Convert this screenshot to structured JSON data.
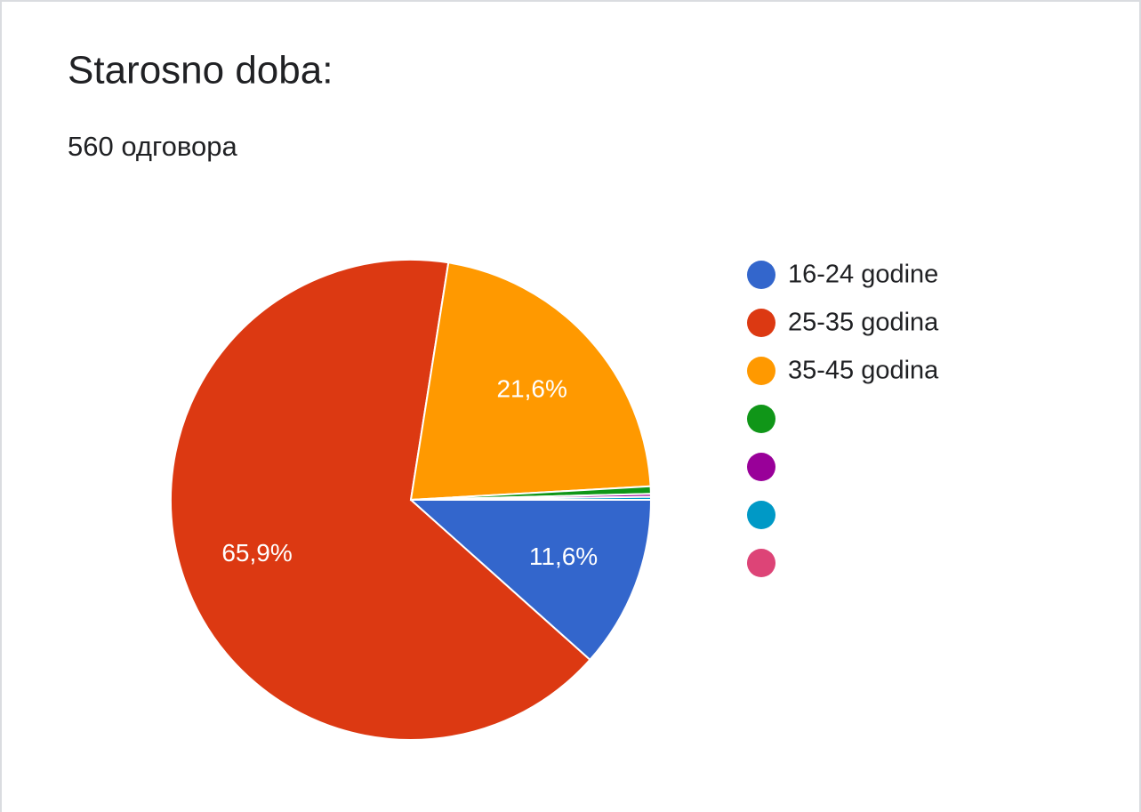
{
  "chart_data": {
    "type": "pie",
    "title": "Starosno doba:",
    "subtitle": "560 одговора",
    "series": [
      {
        "name": "16-24 godine",
        "color": "#3366cc",
        "values": [
          11.6
        ],
        "value_labels": [
          "11,6%"
        ]
      },
      {
        "name": "25-35 godina",
        "color": "#dc3912",
        "values": [
          65.9
        ],
        "value_labels": [
          "65,9%"
        ]
      },
      {
        "name": "35-45 godina",
        "color": "#ff9900",
        "values": [
          21.6
        ],
        "value_labels": [
          "21,6%"
        ]
      },
      {
        "name": null,
        "color": "#109618",
        "values": [
          0.5
        ],
        "value_labels": [
          null
        ]
      },
      {
        "name": null,
        "color": "#990099",
        "values": [
          0.2
        ],
        "value_labels": [
          null
        ]
      },
      {
        "name": null,
        "color": "#0099c6",
        "values": [
          0.2
        ],
        "value_labels": [
          null
        ]
      },
      {
        "name": null,
        "color": "#dd4477",
        "values": [
          0
        ],
        "value_labels": [
          null
        ]
      }
    ]
  }
}
